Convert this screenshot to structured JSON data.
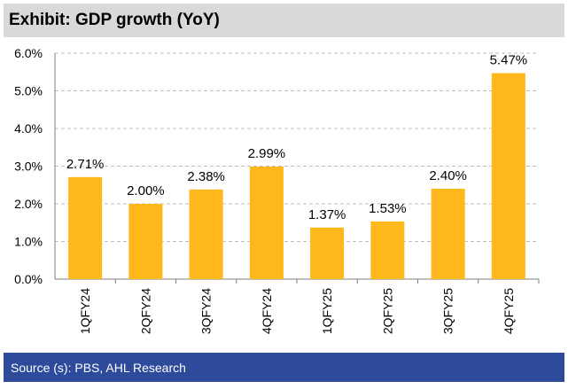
{
  "header": {
    "title": "Exhibit: GDP growth (YoY)"
  },
  "footer": {
    "source": "Source (s): PBS, AHL Research"
  },
  "chart_data": {
    "type": "bar",
    "categories": [
      "1QFY24",
      "2QFY24",
      "3QFY24",
      "4QFY24",
      "1QFY25",
      "2QFY25",
      "3QFY25",
      "4QFY25"
    ],
    "values": [
      2.71,
      2.0,
      2.38,
      2.99,
      1.37,
      1.53,
      2.4,
      5.47
    ],
    "data_labels": [
      "2.71%",
      "2.00%",
      "2.38%",
      "2.99%",
      "1.37%",
      "1.53%",
      "2.40%",
      "5.47%"
    ],
    "y_ticks": [
      0,
      1,
      2,
      3,
      4,
      5,
      6
    ],
    "y_tick_labels": [
      "0.0%",
      "1.0%",
      "2.0%",
      "3.0%",
      "4.0%",
      "5.0%",
      "6.0%"
    ],
    "ylim": [
      0,
      6
    ],
    "grid": "horizontal dashed",
    "legend": "none",
    "bar_color": "#ffb81c"
  }
}
